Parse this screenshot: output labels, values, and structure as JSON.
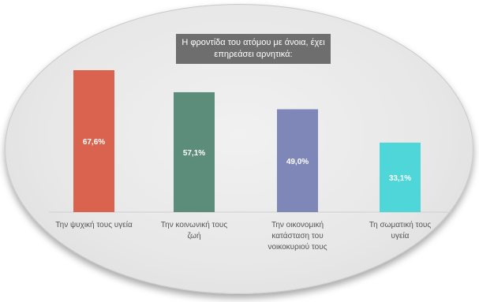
{
  "chart_data": {
    "type": "bar",
    "title": "Η φροντίδα του ατόμου με άνοια, έχει επηρεάσει αρνητικά:",
    "categories": [
      "Την ψυχική τους υγεία",
      "Την κοινωνική τους ζωή",
      "Την οικονομική κατάσταση του νοικοκυριού τους",
      "Τη σωματική τους υγεία"
    ],
    "values": [
      67.6,
      57.1,
      49.0,
      33.1
    ],
    "value_labels": [
      "67,6%",
      "57,1%",
      "49,0%",
      "33,1%"
    ],
    "colors": [
      "#d9634e",
      "#5c8c7a",
      "#7f86b8",
      "#4fd6d8"
    ],
    "ylim": [
      0,
      67.6
    ],
    "grid": false,
    "legend": "none"
  }
}
